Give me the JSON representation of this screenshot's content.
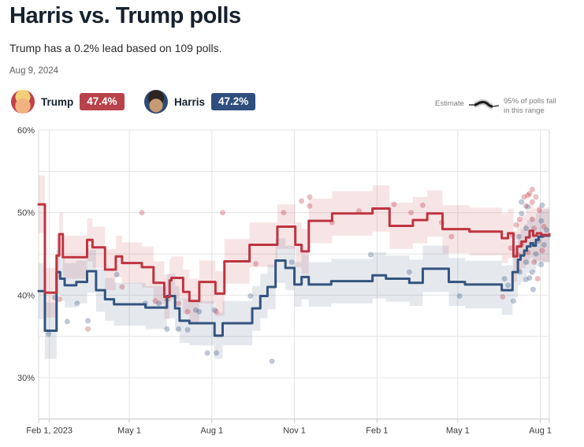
{
  "header": {
    "title": "Harris vs. Trump polls",
    "subtitle": "Trump has a 0.2% lead based on 109 polls.",
    "date": "Aug 9, 2024"
  },
  "legend": {
    "trump": {
      "name": "Trump",
      "value": "47.4%",
      "badge_color": "#b8434b"
    },
    "harris": {
      "name": "Harris",
      "value": "47.2%",
      "badge_color": "#2f4d7d"
    },
    "estimate_label": "Estimate",
    "range_note_line1": "95% of polls fall",
    "range_note_line2": "in this range"
  },
  "chart_data": {
    "type": "line",
    "subtype": "step-polling-average-with-band-and-scatter",
    "title": "Harris vs. Trump polls",
    "x_axis": {
      "start_date": "2023-01-20",
      "end_date": "2024-08-11",
      "domain_days": [
        0,
        569
      ],
      "tick_days": [
        12,
        101,
        193,
        285,
        377,
        467,
        559
      ],
      "tick_labels": [
        "Feb 1, 2023",
        "May 1",
        "Aug 1",
        "Nov 1",
        "Feb 1",
        "May 1",
        "Aug 1"
      ]
    },
    "y_axis": {
      "range": [
        25,
        60
      ],
      "gridline_step": 5,
      "tick_values": [
        60,
        50,
        40,
        30
      ],
      "tick_labels": [
        "60%",
        "50%",
        "40%",
        "30%"
      ]
    },
    "grid": true,
    "series": [
      {
        "name": "Trump",
        "color": "#bf3441",
        "band_color": "rgba(191,52,65,0.13)",
        "dot_color": "rgba(191,52,65,0.32)",
        "points_format": [
          "day_offset",
          "pct",
          "band_halfwidth_pct"
        ],
        "points": [
          [
            0,
            51.0,
            3.5
          ],
          [
            7,
            40.3,
            3.0
          ],
          [
            20,
            44.8,
            2.6
          ],
          [
            23,
            47.4,
            2.6
          ],
          [
            27,
            44.6,
            2.6
          ],
          [
            54,
            46.7,
            2.6
          ],
          [
            60,
            45.8,
            2.5
          ],
          [
            74,
            43.1,
            2.5
          ],
          [
            86,
            44.7,
            2.5
          ],
          [
            93,
            43.9,
            2.5
          ],
          [
            115,
            43.4,
            2.5
          ],
          [
            128,
            41.5,
            2.6
          ],
          [
            140,
            39.8,
            2.7
          ],
          [
            146,
            41.8,
            2.6
          ],
          [
            148,
            42.1,
            2.6
          ],
          [
            161,
            40.4,
            2.7
          ],
          [
            168,
            39.3,
            2.7
          ],
          [
            179,
            41.6,
            2.6
          ],
          [
            197,
            40.2,
            2.7
          ],
          [
            207,
            44.1,
            2.7
          ],
          [
            235,
            46.1,
            2.7
          ],
          [
            266,
            48.3,
            2.7
          ],
          [
            286,
            46.1,
            2.7
          ],
          [
            293,
            45.3,
            2.7
          ],
          [
            301,
            49.0,
            2.7
          ],
          [
            327,
            49.9,
            2.7
          ],
          [
            372,
            50.5,
            2.8
          ],
          [
            391,
            48.4,
            2.8
          ],
          [
            417,
            49.1,
            2.8
          ],
          [
            433,
            49.9,
            2.8
          ],
          [
            450,
            48.0,
            2.9
          ],
          [
            480,
            47.7,
            2.9
          ],
          [
            516,
            46.9,
            3.0
          ],
          [
            523,
            47.5,
            3.0
          ],
          [
            529,
            44.7,
            3.1
          ],
          [
            533,
            45.9,
            3.2
          ],
          [
            538,
            46.5,
            3.2
          ],
          [
            543,
            47.0,
            3.3
          ],
          [
            547,
            47.8,
            3.3
          ],
          [
            551,
            47.2,
            3.3
          ],
          [
            555,
            47.5,
            3.3
          ],
          [
            560,
            47.3,
            3.3
          ],
          [
            569,
            47.4,
            3.3
          ]
        ]
      },
      {
        "name": "Harris",
        "color": "#34547f",
        "band_color": "rgba(52,84,127,0.13)",
        "dot_color": "rgba(52,84,127,0.32)",
        "points_format": [
          "day_offset",
          "pct",
          "band_halfwidth_pct"
        ],
        "points": [
          [
            0,
            40.5,
            3.4
          ],
          [
            7,
            35.7,
            3.4
          ],
          [
            20,
            42.8,
            2.7
          ],
          [
            24,
            42.0,
            2.7
          ],
          [
            29,
            41.2,
            2.7
          ],
          [
            42,
            41.6,
            2.6
          ],
          [
            54,
            42.9,
            2.6
          ],
          [
            64,
            40.6,
            2.6
          ],
          [
            74,
            39.5,
            2.6
          ],
          [
            84,
            38.9,
            2.6
          ],
          [
            119,
            38.5,
            2.6
          ],
          [
            143,
            39.9,
            2.7
          ],
          [
            152,
            38.4,
            2.7
          ],
          [
            157,
            36.9,
            2.7
          ],
          [
            168,
            36.6,
            2.7
          ],
          [
            196,
            35.1,
            2.8
          ],
          [
            205,
            36.6,
            2.7
          ],
          [
            238,
            38.4,
            2.7
          ],
          [
            247,
            39.9,
            2.7
          ],
          [
            255,
            41.0,
            2.7
          ],
          [
            264,
            44.2,
            2.7
          ],
          [
            275,
            43.3,
            2.7
          ],
          [
            285,
            41.3,
            2.7
          ],
          [
            293,
            42.2,
            2.7
          ],
          [
            301,
            41.3,
            2.7
          ],
          [
            326,
            41.7,
            2.7
          ],
          [
            372,
            42.4,
            2.8
          ],
          [
            387,
            42.0,
            2.8
          ],
          [
            413,
            41.5,
            2.8
          ],
          [
            428,
            43.2,
            2.8
          ],
          [
            457,
            41.6,
            2.9
          ],
          [
            475,
            41.3,
            2.9
          ],
          [
            516,
            40.6,
            3.0
          ],
          [
            528,
            42.8,
            3.1
          ],
          [
            534,
            44.3,
            3.1
          ],
          [
            537,
            44.8,
            3.2
          ],
          [
            541,
            45.4,
            3.2
          ],
          [
            544,
            45.9,
            3.2
          ],
          [
            548,
            46.3,
            3.2
          ],
          [
            551,
            46.0,
            3.2
          ],
          [
            554,
            46.7,
            3.2
          ],
          [
            557,
            47.1,
            3.2
          ],
          [
            562,
            47.2,
            3.2
          ],
          [
            569,
            47.2,
            3.2
          ]
        ]
      }
    ],
    "polls_scatter_format": [
      "day_offset",
      "pct",
      "party(T|H)"
    ],
    "polls_scatter": [
      [
        23,
        39.5,
        "T"
      ],
      [
        55,
        35.9,
        "T"
      ],
      [
        93,
        41.0,
        "T"
      ],
      [
        115,
        50.0,
        "T"
      ],
      [
        130,
        39.3,
        "T"
      ],
      [
        143,
        39.5,
        "T"
      ],
      [
        156,
        39.0,
        "T"
      ],
      [
        166,
        38.0,
        "T"
      ],
      [
        198,
        38.0,
        "T"
      ],
      [
        205,
        50.0,
        "T"
      ],
      [
        242,
        43.8,
        "T"
      ],
      [
        273,
        50.0,
        "T"
      ],
      [
        293,
        51.4,
        "T"
      ],
      [
        302,
        51.9,
        "T"
      ],
      [
        302,
        50.8,
        "T"
      ],
      [
        327,
        48.8,
        "T"
      ],
      [
        357,
        50.2,
        "T"
      ],
      [
        396,
        51.0,
        "T"
      ],
      [
        415,
        50.0,
        "T"
      ],
      [
        428,
        50.9,
        "T"
      ],
      [
        449,
        48.8,
        "T"
      ],
      [
        460,
        47.1,
        "T"
      ],
      [
        517,
        39.8,
        "T"
      ],
      [
        526,
        45.7,
        "T"
      ],
      [
        528,
        47.3,
        "T"
      ],
      [
        532,
        48.5,
        "T"
      ],
      [
        534,
        44.9,
        "T"
      ],
      [
        536,
        49.2,
        "T"
      ],
      [
        538,
        46.2,
        "T"
      ],
      [
        541,
        51.9,
        "T"
      ],
      [
        543,
        50.8,
        "T"
      ],
      [
        545,
        52.1,
        "T"
      ],
      [
        545,
        45.2,
        "T"
      ],
      [
        547,
        52.3,
        "T"
      ],
      [
        550,
        52.8,
        "T"
      ],
      [
        550,
        51.3,
        "T"
      ],
      [
        550,
        49.2,
        "T"
      ],
      [
        552,
        48.1,
        "T"
      ],
      [
        552,
        44.0,
        "T"
      ],
      [
        554,
        51.9,
        "T"
      ],
      [
        556,
        42.0,
        "T"
      ],
      [
        558,
        50.3,
        "T"
      ],
      [
        561,
        45.4,
        "T"
      ],
      [
        563,
        48.3,
        "T"
      ],
      [
        11,
        35.3,
        "H"
      ],
      [
        18,
        39.7,
        "H"
      ],
      [
        32,
        36.8,
        "H"
      ],
      [
        43,
        39.0,
        "H"
      ],
      [
        55,
        36.9,
        "H"
      ],
      [
        87,
        42.5,
        "H"
      ],
      [
        119,
        39.0,
        "H"
      ],
      [
        134,
        39.0,
        "H"
      ],
      [
        143,
        35.9,
        "H"
      ],
      [
        156,
        35.9,
        "H"
      ],
      [
        166,
        35.8,
        "H"
      ],
      [
        175,
        38.2,
        "H"
      ],
      [
        179,
        38.0,
        "H"
      ],
      [
        188,
        33.0,
        "H"
      ],
      [
        196,
        38.2,
        "H"
      ],
      [
        198,
        33.0,
        "H"
      ],
      [
        236,
        39.9,
        "H"
      ],
      [
        260,
        32.0,
        "H"
      ],
      [
        282,
        44.0,
        "H"
      ],
      [
        370,
        44.9,
        "H"
      ],
      [
        413,
        42.8,
        "H"
      ],
      [
        469,
        39.9,
        "H"
      ],
      [
        519,
        42.0,
        "H"
      ],
      [
        523,
        41.2,
        "H"
      ],
      [
        529,
        39.3,
        "H"
      ],
      [
        535,
        47.1,
        "H"
      ],
      [
        536,
        42.8,
        "H"
      ],
      [
        538,
        51.3,
        "H"
      ],
      [
        538,
        49.9,
        "H"
      ],
      [
        543,
        48.1,
        "H"
      ],
      [
        543,
        44.0,
        "H"
      ],
      [
        543,
        41.9,
        "H"
      ],
      [
        545,
        50.7,
        "H"
      ],
      [
        547,
        42.1,
        "H"
      ],
      [
        550,
        42.8,
        "H"
      ],
      [
        551,
        40.7,
        "H"
      ],
      [
        554,
        45.0,
        "H"
      ],
      [
        557,
        46.6,
        "H"
      ],
      [
        560,
        49.0,
        "H"
      ],
      [
        560,
        43.7,
        "H"
      ],
      [
        561,
        50.9,
        "H"
      ],
      [
        563,
        46.1,
        "H"
      ],
      [
        566,
        47.9,
        "H"
      ]
    ],
    "legend_position": "top"
  }
}
